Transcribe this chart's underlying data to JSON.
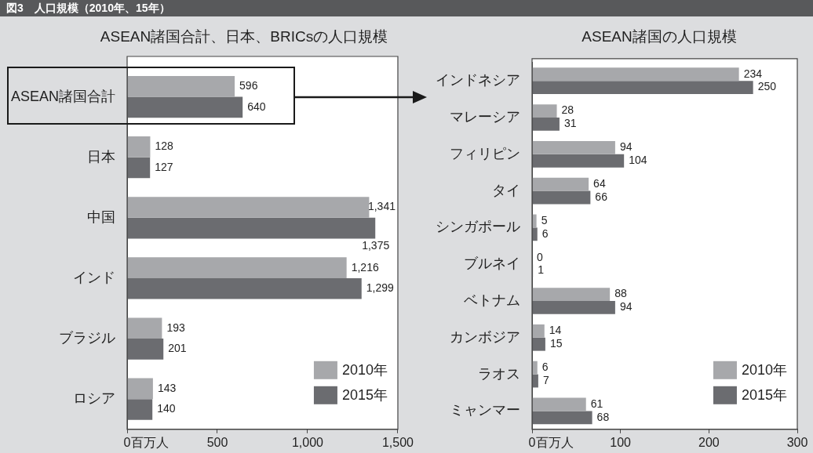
{
  "chart_data": [
    {
      "type": "bar",
      "orientation": "horizontal",
      "title": "ASEAN諸国合計、日本、BRICsの人口規模",
      "xlabel": "百万人",
      "annotations": [
        "図3　人口規模（2010年、15年）"
      ],
      "categories": [
        "ASEAN諸国合計",
        "日本",
        "中国",
        "インド",
        "ブラジル",
        "ロシア"
      ],
      "series": [
        {
          "name": "2010年",
          "color": "#a7a8ab",
          "values": [
            596,
            128,
            1341,
            1216,
            193,
            143
          ],
          "value_labels": [
            "596",
            "128",
            "1,341",
            "1,216",
            "193",
            "143"
          ]
        },
        {
          "name": "2015年",
          "color": "#6b6c70",
          "values": [
            640,
            127,
            1375,
            1299,
            201,
            140
          ],
          "value_labels": [
            "640",
            "127",
            "1,375",
            "1,299",
            "201",
            "140"
          ]
        }
      ],
      "xlim": [
        0,
        1500
      ],
      "xticks": [
        0,
        500,
        {
          "value": 1000,
          "label": "1,000"
        },
        {
          "value": 1500,
          "label": "1,500"
        }
      ],
      "legend": "bottom right"
    },
    {
      "type": "bar",
      "orientation": "horizontal",
      "title": "ASEAN諸国の人口規模",
      "xlabel": "百万人",
      "categories": [
        "インドネシア",
        "マレーシア",
        "フィリピン",
        "タイ",
        "シンガポール",
        "ブルネイ",
        "ベトナム",
        "カンボジア",
        "ラオス",
        "ミャンマー"
      ],
      "series": [
        {
          "name": "2010年",
          "color": "#a7a8ab",
          "values": [
            234,
            28,
            94,
            64,
            5,
            0,
            88,
            14,
            6,
            61
          ]
        },
        {
          "name": "2015年",
          "color": "#6b6c70",
          "values": [
            250,
            31,
            104,
            66,
            6,
            1,
            94,
            15,
            7,
            68
          ]
        }
      ],
      "xlim": [
        0,
        300
      ],
      "xticks": [
        0,
        100,
        200,
        300
      ],
      "data_labels": true,
      "legend": "bottom right"
    }
  ]
}
